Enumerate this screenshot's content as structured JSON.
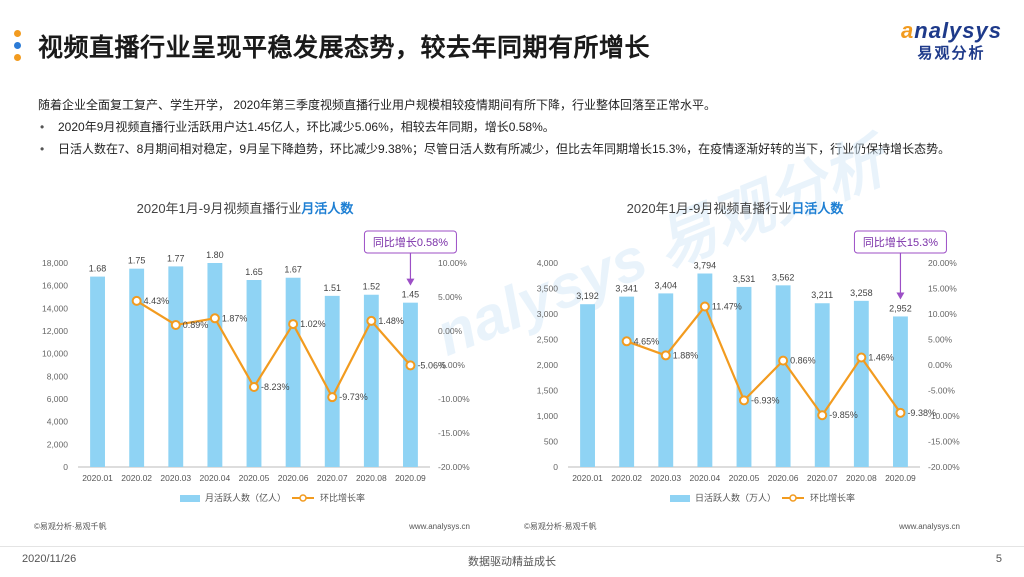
{
  "header": {
    "title": "视频直播行业呈现平稳发展态势，较去年同期有所增长",
    "dot_colors": [
      "#f29b1f",
      "#2b7bd6",
      "#f29b1f"
    ]
  },
  "logo": {
    "brand_a": "a",
    "brand_rest": "nalysys",
    "cn": "易观分析"
  },
  "body": {
    "intro": "随着企业全面复工复产、学生开学， 2020年第三季度视频直播行业用户规模相较疫情期间有所下降，行业整体回落至正常水平。",
    "bullets": [
      "2020年9月视频直播行业活跃用户达1.45亿人，环比减少5.06%，相较去年同期，增长0.58%。",
      "日活人数在7、8月期间相对稳定，9月呈下降趋势，环比减少9.38%；尽管日活人数有所减少，但比去年同期增长15.3%，在疫情逐渐好转的当下，行业仍保持增长态势。"
    ],
    "bullet_mark": "•"
  },
  "watermark": "nalysys 易观分析",
  "chart_data": [
    {
      "type": "bar",
      "title_prefix": "2020年1月-9月视频直播行业",
      "title_highlight": "月活人数",
      "categories": [
        "2020.01",
        "2020.02",
        "2020.03",
        "2020.04",
        "2020.05",
        "2020.06",
        "2020.07",
        "2020.08",
        "2020.09"
      ],
      "series": [
        {
          "name": "月活跃人数（亿人）",
          "kind": "bar",
          "axis": "left",
          "values": [
            16800,
            17500,
            17700,
            18000,
            16500,
            16700,
            15100,
            15200,
            14500
          ],
          "labels": [
            "1.68",
            "1.75",
            "1.77",
            "1.80",
            "1.65",
            "1.67",
            "1.51",
            "1.52",
            "1.45"
          ],
          "color": "#8fd3f4"
        },
        {
          "name": "环比增长率",
          "kind": "line",
          "axis": "right",
          "values": [
            null,
            4.43,
            0.89,
            1.87,
            -8.23,
            1.02,
            -9.73,
            1.48,
            -5.06
          ],
          "labels": [
            "",
            "4.43%",
            "0.89%",
            "1.87%",
            "-8.23%",
            "1.02%",
            "-9.73%",
            "1.48%",
            "-5.06%"
          ],
          "color": "#f29b1f"
        }
      ],
      "left_axis": {
        "min": 0,
        "max": 18000,
        "step": 2000,
        "ticks": [
          "0",
          "2,000",
          "4,000",
          "6,000",
          "8,000",
          "10,000",
          "12,000",
          "14,000",
          "16,000",
          "18,000"
        ]
      },
      "right_axis": {
        "min": -20,
        "max": 10,
        "step": 5,
        "ticks": [
          "-20.00%",
          "-15.00%",
          "-10.00%",
          "-5.00%",
          "0.00%",
          "5.00%",
          "10.00%"
        ]
      },
      "callout": "同比增长0.58%",
      "callout_index": 8,
      "source": "©易观分析·易观千帆",
      "site": "www.analysys.cn"
    },
    {
      "type": "bar",
      "title_prefix": "2020年1月-9月视频直播行业",
      "title_highlight": "日活人数",
      "categories": [
        "2020.01",
        "2020.02",
        "2020.03",
        "2020.04",
        "2020.05",
        "2020.06",
        "2020.07",
        "2020.08",
        "2020.09"
      ],
      "series": [
        {
          "name": "日活跃人数（万人）",
          "kind": "bar",
          "axis": "left",
          "values": [
            3192,
            3341,
            3404,
            3794,
            3531,
            3562,
            3211,
            3258,
            2952
          ],
          "labels": [
            "3,192",
            "3,341",
            "3,404",
            "3,794",
            "3,531",
            "3,562",
            "3,211",
            "3,258",
            "2,952"
          ],
          "color": "#8fd3f4"
        },
        {
          "name": "环比增长率",
          "kind": "line",
          "axis": "right",
          "values": [
            null,
            4.65,
            1.88,
            11.47,
            -6.93,
            0.86,
            -9.85,
            1.46,
            -9.38
          ],
          "labels": [
            "",
            "4.65%",
            "1.88%",
            "11.47%",
            "-6.93%",
            "0.86%",
            "-9.85%",
            "1.46%",
            "-9.38%"
          ],
          "color": "#f29b1f"
        }
      ],
      "left_axis": {
        "min": 0,
        "max": 4000,
        "step": 500,
        "ticks": [
          "0",
          "500",
          "1,000",
          "1,500",
          "2,000",
          "2,500",
          "3,000",
          "3,500",
          "4,000"
        ]
      },
      "right_axis": {
        "min": -20,
        "max": 20,
        "step": 5,
        "ticks": [
          "-20.00%",
          "-15.00%",
          "-10.00%",
          "-5.00%",
          "0.00%",
          "5.00%",
          "10.00%",
          "15.00%",
          "20.00%"
        ]
      },
      "callout": "同比增长15.3%",
      "callout_index": 8,
      "source": "©易观分析·易观千帆",
      "site": "www.analysys.cn"
    }
  ],
  "footer": {
    "date": "2020/11/26",
    "slogan": "数据驱动精益成长",
    "page": "5"
  }
}
